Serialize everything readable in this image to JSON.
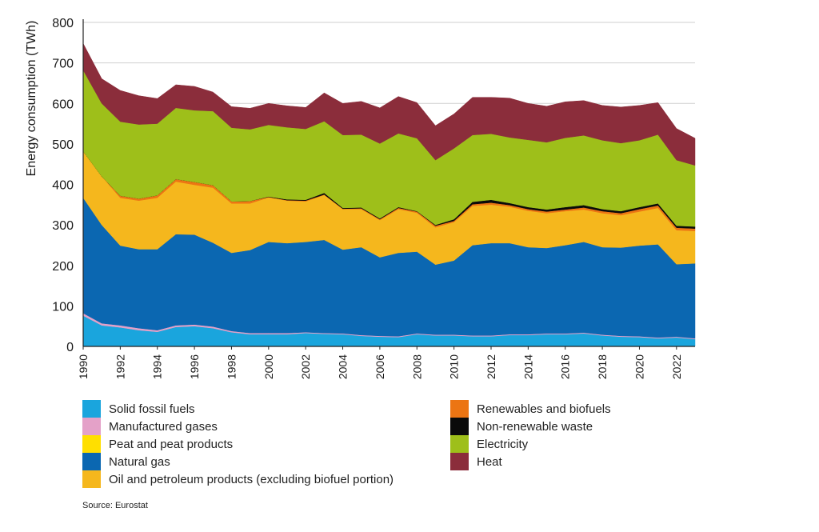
{
  "chart_data": {
    "type": "area",
    "stacked": true,
    "ylabel": "Energy consumption (TWh)",
    "xlabel": "",
    "ylim": [
      0,
      800
    ],
    "yticks": [
      0,
      100,
      200,
      300,
      400,
      500,
      600,
      700,
      800
    ],
    "xticks": [
      "1990",
      "1992",
      "1994",
      "1996",
      "1998",
      "2000",
      "2002",
      "2004",
      "2006",
      "2008",
      "2010",
      "2012",
      "2014",
      "2016",
      "2018",
      "2020",
      "2022"
    ],
    "grid": true,
    "x": [
      1990,
      1991,
      1992,
      1993,
      1994,
      1995,
      1996,
      1997,
      1998,
      1999,
      2000,
      2001,
      2002,
      2003,
      2004,
      2005,
      2006,
      2007,
      2008,
      2009,
      2010,
      2011,
      2012,
      2013,
      2014,
      2015,
      2016,
      2017,
      2018,
      2019,
      2020,
      2021,
      2022,
      2023
    ],
    "series": [
      {
        "name": "Solid fossil fuels",
        "color": "#1aa5dd",
        "values": [
          76,
          52,
          47,
          40,
          36,
          48,
          50,
          45,
          35,
          30,
          30,
          30,
          33,
          31,
          30,
          26,
          24,
          23,
          30,
          27,
          27,
          25,
          25,
          28,
          28,
          30,
          30,
          32,
          27,
          24,
          23,
          20,
          22,
          18
        ]
      },
      {
        "name": "Manufactured gases",
        "color": "#e4a1c8",
        "values": [
          6,
          5,
          5,
          5,
          4,
          4,
          4,
          4,
          3,
          3,
          3,
          3,
          2,
          2,
          2,
          2,
          2,
          2,
          2,
          2,
          2,
          2,
          2,
          2,
          2,
          2,
          2,
          2,
          2,
          2,
          2,
          2,
          2,
          2
        ]
      },
      {
        "name": "Peat and peat products",
        "color": "#ffdf00",
        "values": [
          0,
          0,
          0,
          0,
          0,
          0,
          0,
          0,
          0,
          0,
          0,
          0,
          0,
          0,
          0,
          0,
          0,
          0,
          0,
          0,
          0,
          0,
          0,
          0,
          0,
          0,
          0,
          0,
          0,
          0,
          0,
          0,
          0,
          0
        ]
      },
      {
        "name": "Natural gas",
        "color": "#0b67b1",
        "values": [
          285,
          243,
          197,
          195,
          200,
          225,
          222,
          207,
          193,
          205,
          225,
          222,
          223,
          230,
          207,
          217,
          194,
          206,
          202,
          173,
          183,
          223,
          228,
          225,
          215,
          211,
          218,
          224,
          216,
          218,
          224,
          230,
          179,
          185
        ]
      },
      {
        "name": "Oil and petroleum products (excluding biofuel portion)",
        "color": "#f5b71d",
        "values": [
          115,
          120,
          118,
          120,
          127,
          130,
          123,
          136,
          122,
          115,
          110,
          105,
          100,
          111,
          100,
          94,
          92,
          108,
          96,
          92,
          95,
          97,
          95,
          90,
          90,
          86,
          84,
          80,
          84,
          80,
          84,
          90,
          84,
          80
        ]
      },
      {
        "name": "Renewables and biofuels",
        "color": "#ec7513",
        "values": [
          0,
          0,
          5,
          5,
          6,
          6,
          7,
          6,
          5,
          6,
          1,
          1,
          2,
          1,
          1,
          2,
          2,
          3,
          3,
          4,
          3,
          4,
          5,
          4,
          4,
          4,
          4,
          5,
          5,
          5,
          6,
          6,
          6,
          6
        ]
      },
      {
        "name": "Non-renewable waste",
        "color": "#0a0a0a",
        "values": [
          0,
          0,
          0,
          0,
          0,
          0,
          0,
          0,
          0,
          0,
          1,
          2,
          2,
          4,
          2,
          2,
          2,
          2,
          1,
          2,
          4,
          6,
          7,
          5,
          5,
          5,
          6,
          6,
          5,
          5,
          5,
          5,
          5,
          5
        ]
      },
      {
        "name": "Electricity",
        "color": "#9ebf1a",
        "values": [
          200,
          180,
          183,
          183,
          177,
          176,
          177,
          183,
          182,
          177,
          177,
          178,
          175,
          177,
          180,
          180,
          185,
          182,
          180,
          160,
          175,
          165,
          163,
          162,
          166,
          166,
          171,
          172,
          170,
          168,
          165,
          170,
          162,
          151
        ]
      },
      {
        "name": "Heat",
        "color": "#8b2d3b",
        "values": [
          66,
          61,
          77,
          71,
          62,
          57,
          59,
          47,
          52,
          52,
          53,
          53,
          53,
          70,
          78,
          82,
          88,
          91,
          88,
          85,
          85,
          93,
          90,
          97,
          90,
          89,
          89,
          86,
          86,
          89,
          86,
          79,
          78,
          67
        ]
      }
    ],
    "legend": {
      "left": [
        "Solid fossil fuels",
        "Manufactured gases",
        "Peat and peat products",
        "Natural gas",
        "Oil and petroleum products (excluding biofuel portion)"
      ],
      "right": [
        "Renewables and biofuels",
        "Non-renewable waste",
        "Electricity",
        "Heat"
      ]
    },
    "source": "Source: Eurostat"
  }
}
